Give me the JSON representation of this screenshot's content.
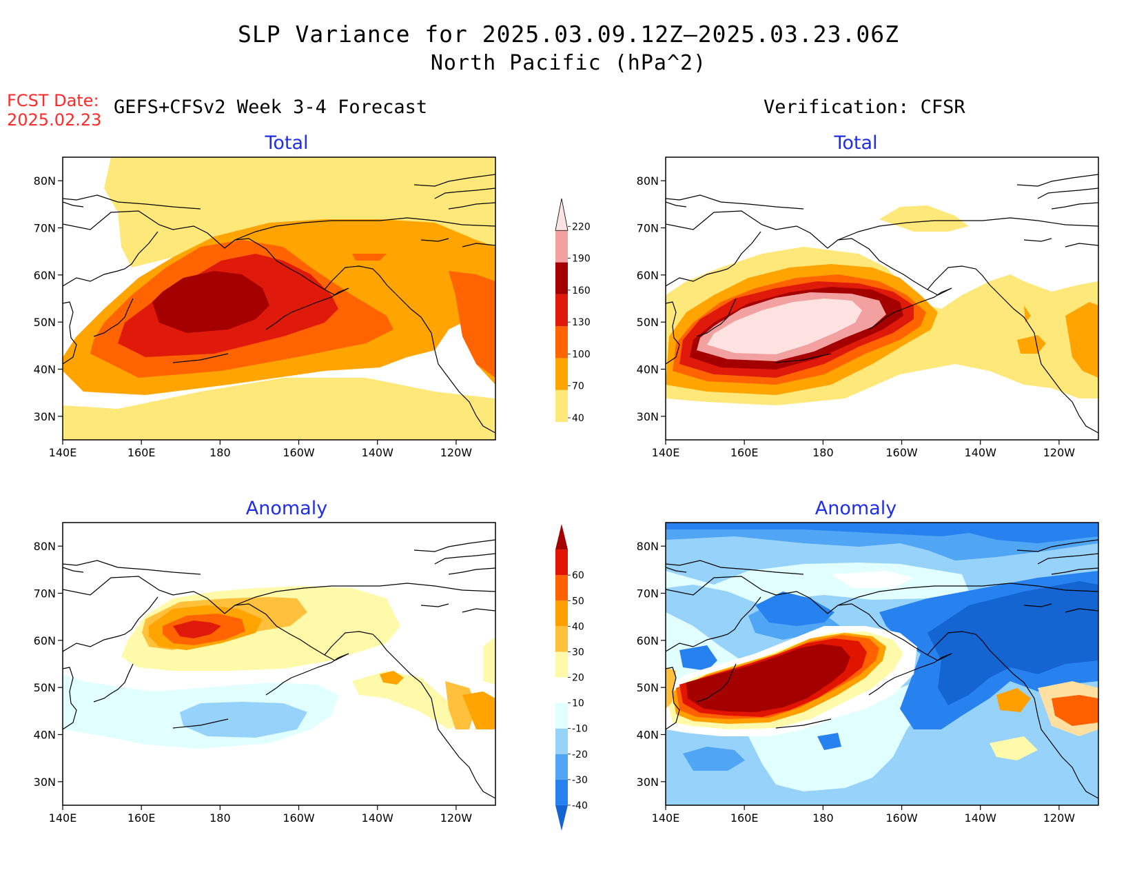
{
  "title": {
    "line1": "SLP Variance for 2025.03.09.12Z–2025.03.23.06Z",
    "line2": "North Pacific (hPa^2)"
  },
  "forecast_date": {
    "label": "FCST Date:",
    "value": "2025.02.23"
  },
  "left_header": "GEFS+CFSv2 Week 3-4 Forecast",
  "right_header": "Verification: CFSR",
  "panel_titles": {
    "total": "Total",
    "anomaly": "Anomaly"
  },
  "axes": {
    "lat_ticks": [
      "80N",
      "70N",
      "60N",
      "50N",
      "40N",
      "30N"
    ],
    "lon_ticks": [
      "140E",
      "160E",
      "180",
      "160W",
      "140W",
      "120W"
    ],
    "lat_range": [
      25,
      85
    ],
    "lon_range": [
      140,
      250
    ]
  },
  "colorbars": {
    "total": {
      "levels": [
        "40",
        "70",
        "100",
        "130",
        "160",
        "190",
        "220"
      ],
      "colors": [
        "#ffe87a",
        "#ffa400",
        "#ff6400",
        "#e01a0a",
        "#a50000",
        "#f2a0a0",
        "#fde2e2"
      ]
    },
    "anomaly": {
      "levels": [
        "-40",
        "-30",
        "-20",
        "-10",
        "10",
        "20",
        "30",
        "40",
        "50",
        "60"
      ],
      "colors": [
        "#1464d2",
        "#2782f0",
        "#50a5f5",
        "#96d2fa",
        "#e1ffff",
        "#ffffff",
        "#fffaaa",
        "#ffc03c",
        "#ffa000",
        "#ff6000",
        "#e11400",
        "#a50000"
      ]
    }
  },
  "colors": {
    "title_accent": "#1f2ee8",
    "fcst_date": "#ff2a2a"
  }
}
